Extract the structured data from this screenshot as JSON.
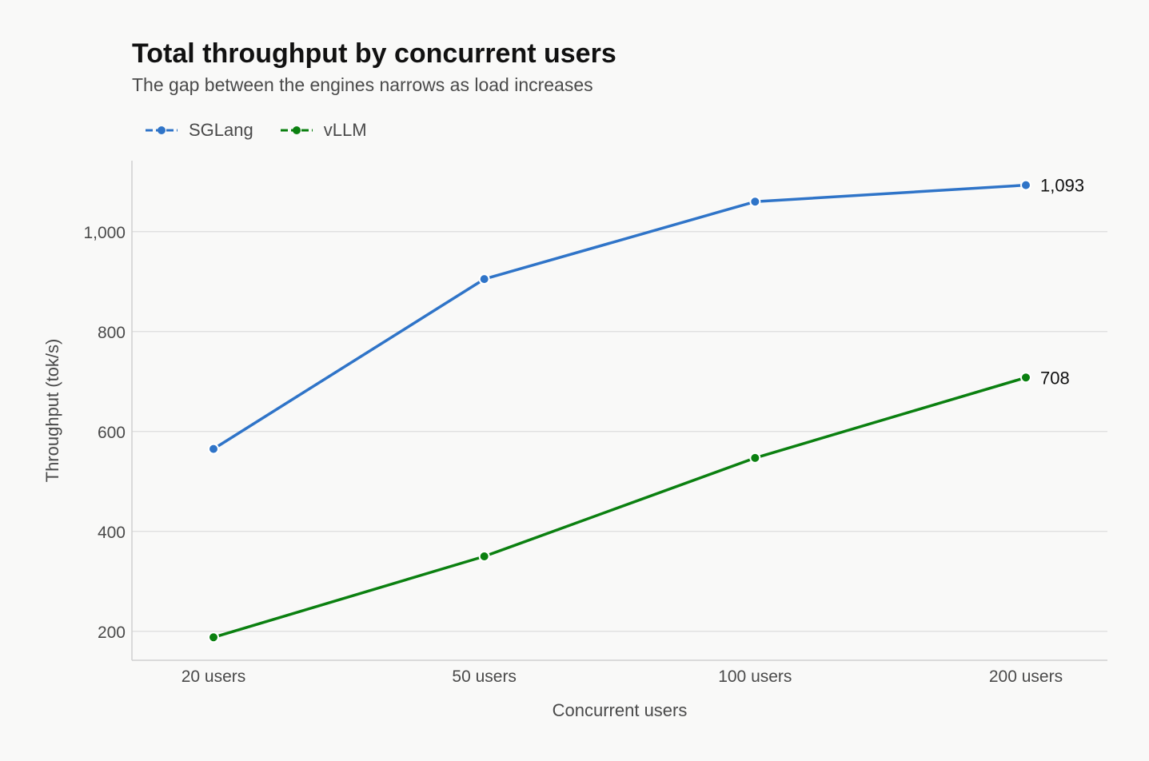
{
  "title": "Total throughput by concurrent users",
  "subtitle": "The gap between the engines narrows as load increases",
  "colors": {
    "SGLang": "#2f74c8",
    "vLLM": "#0b8010",
    "grid": "#dcdcdc",
    "axis": "#cfcfcf",
    "background": "#f9f9f8"
  },
  "chart_data": {
    "type": "line",
    "title": "Total throughput by concurrent users",
    "subtitle": "The gap between the engines narrows as load increases",
    "xlabel": "Concurrent users",
    "ylabel": "Throughput (tok/s)",
    "categories": [
      "20 users",
      "50 users",
      "100 users",
      "200 users"
    ],
    "yticks": [
      200,
      400,
      600,
      800,
      1000
    ],
    "ytick_labels": [
      "200",
      "400",
      "600",
      "800",
      "1,000"
    ],
    "ylim": [
      142,
      1142
    ],
    "grid": "horizontal",
    "legend_position": "top-left",
    "series": [
      {
        "name": "SGLang",
        "values": [
          565,
          905,
          1060,
          1093
        ],
        "end_label": "1,093"
      },
      {
        "name": "vLLM",
        "values": [
          188,
          350,
          547,
          708
        ],
        "end_label": "708"
      }
    ]
  }
}
